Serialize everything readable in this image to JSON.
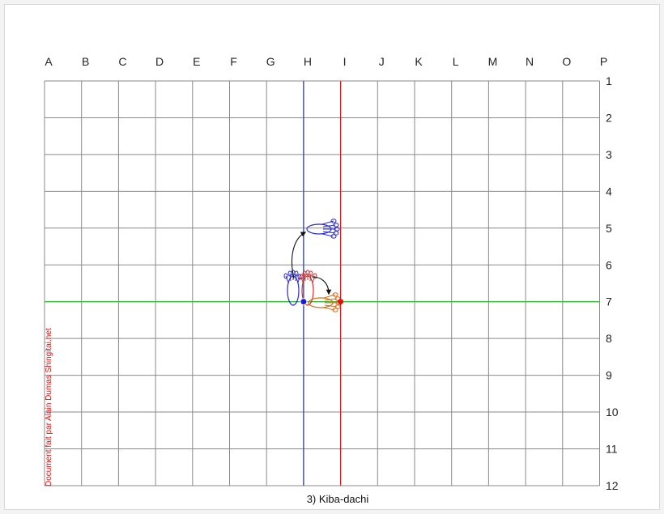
{
  "grid": {
    "columns": [
      "A",
      "B",
      "C",
      "D",
      "E",
      "F",
      "G",
      "H",
      "I",
      "J",
      "K",
      "L",
      "M",
      "N",
      "O",
      "P"
    ],
    "rows": [
      "1",
      "2",
      "3",
      "4",
      "5",
      "6",
      "7",
      "8",
      "9",
      "10",
      "11",
      "12"
    ]
  },
  "reference_lines": {
    "vertical_blue_column": "H",
    "vertical_red_column": "I",
    "horizontal_green_row": "7"
  },
  "markers": {
    "blue_point": {
      "column": "H",
      "row": "7"
    },
    "red_point": {
      "column": "I",
      "row": "7"
    }
  },
  "caption": "3) Kiba-dachi",
  "credit": "Document fait par Alain Dumas Shingitai.net",
  "colors": {
    "grid": "#8a8a8a",
    "blue_line": "#4a5a9a",
    "red_line": "#d22020",
    "green_line": "#40c040",
    "blue_foot": "#2a2ad0",
    "red_foot": "#d03030",
    "orange_foot": "#d07020",
    "credit": "#e01010"
  },
  "icons": {
    "left_foot_before": "blue-foot-icon",
    "left_foot_after": "blue-foot-icon",
    "right_foot_before": "red-foot-icon",
    "right_foot_after": "orange-foot-icon",
    "movement_arrow": "curved-arrow-icon"
  }
}
